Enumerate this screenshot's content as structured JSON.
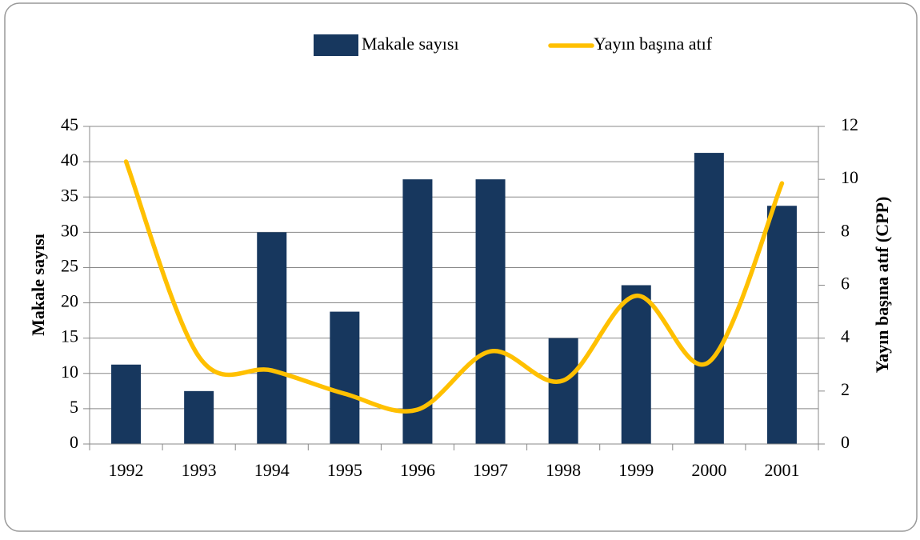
{
  "chart_data": {
    "type": "combo",
    "categories": [
      "1992",
      "1993",
      "1994",
      "1995",
      "1996",
      "1997",
      "1998",
      "1999",
      "2000",
      "2001"
    ],
    "series": [
      {
        "name": "Makale sayısı",
        "type": "bar",
        "color": "#17375e",
        "axis": "y",
        "values": [
          11.25,
          7.5,
          30,
          18.75,
          37.5,
          37.5,
          15,
          22.5,
          41.25,
          33.75
        ]
      },
      {
        "name": "Yayın başına atıf",
        "type": "line",
        "color": "#ffc000",
        "axis": "y2",
        "values": [
          10.67,
          3.3,
          2.78,
          1.9,
          1.3,
          3.5,
          2.4,
          5.6,
          3.1,
          9.85
        ]
      }
    ],
    "ylabel": "Makale sayısı",
    "y2label": "Yayın başına atıf (CPP)",
    "ylim": [
      0,
      45
    ],
    "yticks": [
      0,
      5,
      10,
      15,
      20,
      25,
      30,
      35,
      40,
      45
    ],
    "y2lim": [
      0,
      12
    ],
    "y2ticks": [
      0,
      2,
      4,
      6,
      8,
      10,
      12
    ],
    "grid": true,
    "legend": "top"
  }
}
